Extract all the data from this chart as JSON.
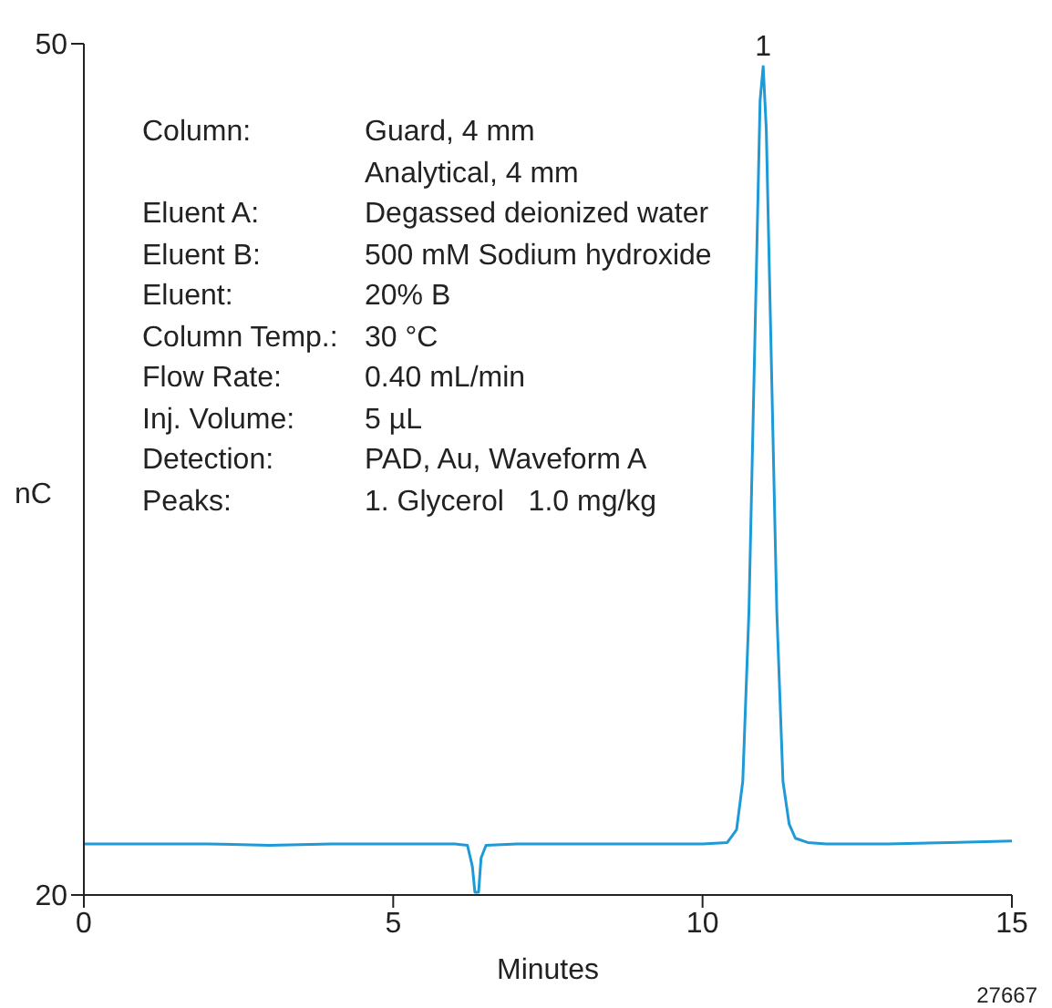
{
  "chart_data": {
    "type": "line",
    "xlabel": "Minutes",
    "ylabel": "nC",
    "x": [
      0,
      1,
      2,
      3,
      4,
      5,
      6,
      6.2,
      6.28,
      6.32,
      6.38,
      6.42,
      6.5,
      7,
      8,
      9,
      10,
      10.4,
      10.55,
      10.65,
      10.75,
      10.85,
      10.93,
      10.98,
      11.03,
      11.1,
      11.2,
      11.3,
      11.4,
      11.5,
      11.7,
      12,
      13,
      14,
      15
    ],
    "series": [
      {
        "color": "#1e9ad6",
        "values": [
          21.8,
          21.8,
          21.8,
          21.75,
          21.8,
          21.8,
          21.8,
          21.75,
          21.0,
          20.1,
          20.1,
          21.3,
          21.75,
          21.8,
          21.8,
          21.8,
          21.8,
          21.85,
          22.3,
          24,
          30,
          40,
          48,
          49.2,
          47,
          40,
          30,
          24,
          22.5,
          22.0,
          21.85,
          21.8,
          21.8,
          21.85,
          21.9
        ]
      }
    ],
    "xlim": [
      0,
      15
    ],
    "xticks": [
      0,
      5,
      10,
      15
    ],
    "ylim": [
      20,
      50
    ],
    "yticks": [
      20,
      50
    ],
    "grid": false,
    "legend": false,
    "marker": "none",
    "line_style": "solid",
    "annotations": [
      {
        "text": "1",
        "x": 10.98,
        "y": 49.2
      },
      "Column:",
      "Guard, 4 mm",
      "Analytical, 4 mm",
      "Eluent A:",
      "Degassed deionized water",
      "Eluent B:",
      "500 mM Sodium hydroxide",
      "Eluent:",
      "20% B",
      "Column Temp.:",
      "30 °C",
      "Flow Rate:",
      "0.40 mL/min",
      "Inj. Volume:",
      "5 µL",
      "Detection:",
      "PAD, Au, Waveform A",
      "Peaks:",
      "1. Glycerol   1.0 mg/kg",
      "27667"
    ]
  }
}
